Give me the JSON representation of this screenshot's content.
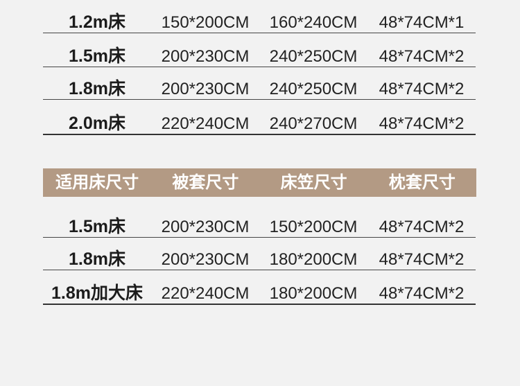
{
  "page": {
    "background_color": "#f2f2f2",
    "separator_color": "#454545",
    "text_color": "#222222"
  },
  "header": {
    "background_color": "#b39a84",
    "text_color": "#ffffff",
    "columns": [
      "适用床尺寸",
      "被套尺寸",
      "床笠尺寸",
      "枕套尺寸"
    ]
  },
  "table_top": {
    "rows": [
      {
        "bed": "1.2m床",
        "duvet": "150*200CM",
        "sheet": "160*240CM",
        "pillow": "48*74CM*1"
      },
      {
        "bed": "1.5m床",
        "duvet": "200*230CM",
        "sheet": "240*250CM",
        "pillow": "48*74CM*2"
      },
      {
        "bed": "1.8m床",
        "duvet": "200*230CM",
        "sheet": "240*250CM",
        "pillow": "48*74CM*2"
      },
      {
        "bed": "2.0m床",
        "duvet": "220*240CM",
        "sheet": "240*270CM",
        "pillow": "48*74CM*2"
      }
    ]
  },
  "table_bottom": {
    "rows": [
      {
        "bed": "1.5m床",
        "duvet": "200*230CM",
        "sheet": "150*200CM",
        "pillow": "48*74CM*2"
      },
      {
        "bed": "1.8m床",
        "duvet": "200*230CM",
        "sheet": "180*200CM",
        "pillow": "48*74CM*2"
      },
      {
        "bed": "1.8m加大床",
        "duvet": "220*240CM",
        "sheet": "180*200CM",
        "pillow": "48*74CM*2"
      }
    ]
  }
}
